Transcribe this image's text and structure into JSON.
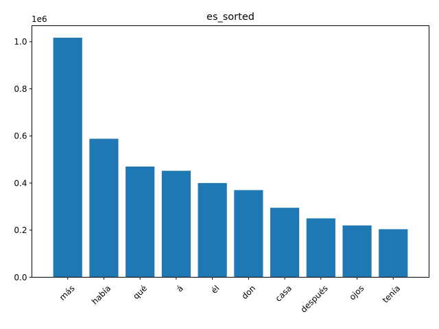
{
  "chart_data": {
    "type": "bar",
    "title": "es_sorted",
    "xlabel": "",
    "ylabel": "",
    "scale_label": "1e6",
    "categories": [
      "más",
      "había",
      "qué",
      "á",
      "él",
      "don",
      "casa",
      "después",
      "ojos",
      "tenía"
    ],
    "values": [
      1017000,
      588000,
      470000,
      452000,
      400000,
      370000,
      295000,
      250000,
      220000,
      204000
    ],
    "ylim": [
      0,
      1068000
    ],
    "yticks": [
      0,
      200000,
      400000,
      600000,
      800000,
      1000000
    ],
    "ytick_labels": [
      "0.0",
      "0.2",
      "0.4",
      "0.6",
      "0.8",
      "1.0"
    ],
    "grid": false,
    "bar_color": "#1f77b4"
  }
}
